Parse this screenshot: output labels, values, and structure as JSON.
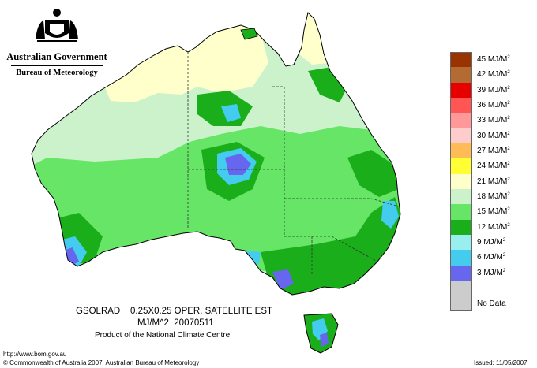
{
  "header": {
    "government": "Australian Government",
    "bureau": "Bureau of Meteorology",
    "crest_icon": "coat-of-arms-icon"
  },
  "legend": [
    {
      "label": "45 MJ/M",
      "sup": "2",
      "color": "#993300"
    },
    {
      "label": "42 MJ/M",
      "sup": "2",
      "color": "#b36b33"
    },
    {
      "label": "39 MJ/M",
      "sup": "2",
      "color": "#e60000"
    },
    {
      "label": "36 MJ/M",
      "sup": "2",
      "color": "#ff5555"
    },
    {
      "label": "33 MJ/M",
      "sup": "2",
      "color": "#ff9999"
    },
    {
      "label": "30 MJ/M",
      "sup": "2",
      "color": "#ffcccc"
    },
    {
      "label": "27 MJ/M",
      "sup": "2",
      "color": "#ffbb55"
    },
    {
      "label": "24 MJ/M",
      "sup": "2",
      "color": "#ffff33"
    },
    {
      "label": "21 MJ/M",
      "sup": "2",
      "color": "#ffffcc"
    },
    {
      "label": "18 MJ/M",
      "sup": "2",
      "color": "#ccf2cc"
    },
    {
      "label": "15 MJ/M",
      "sup": "2",
      "color": "#66e566"
    },
    {
      "label": "12 MJ/M",
      "sup": "2",
      "color": "#1aae1a"
    },
    {
      "label": "9 MJ/M",
      "sup": "2",
      "color": "#99eeee"
    },
    {
      "label": "6 MJ/M",
      "sup": "2",
      "color": "#44ccee"
    },
    {
      "label": "3 MJ/M",
      "sup": "2",
      "color": "#6666ee"
    },
    {
      "label": "",
      "sup": "",
      "color": "#cccccc"
    },
    {
      "label": "No Data",
      "sup": "",
      "color": "#cccccc"
    }
  ],
  "product": {
    "line1": "GSOLRAD    0.25X0.25 OPER. SATELLITE EST",
    "line2": "MJ/M^2  20070511",
    "line3": "Product of the National Climate Centre"
  },
  "footer": {
    "url": "http://www.bom.gov.au",
    "copyright": "© Commonwealth of Australia 2007, Australian Bureau of Meteorology",
    "issued": "Issued: 11/05/2007"
  }
}
